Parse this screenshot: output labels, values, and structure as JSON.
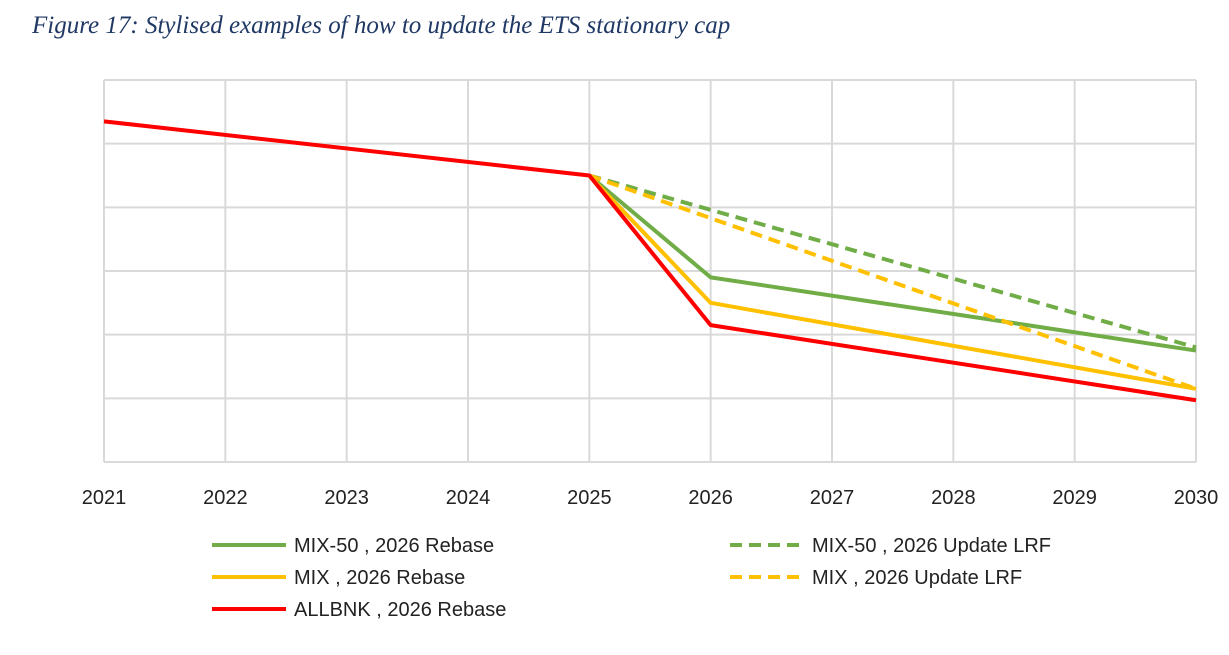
{
  "figure_title": "Figure 17: Stylised examples of how to update the ETS stationary cap",
  "chart_data": {
    "type": "line",
    "title": "",
    "xlabel": "",
    "ylabel": "",
    "x": [
      2021,
      2022,
      2023,
      2024,
      2025,
      2026,
      2027,
      2028,
      2029,
      2030
    ],
    "xlim": [
      2021,
      2030
    ],
    "ylim": [
      0,
      6
    ],
    "y_tick_labels_shown": false,
    "grid": true,
    "legend_position": "bottom",
    "series": [
      {
        "name": "MIX-50 , 2026 Rebase",
        "color": "#70AD47",
        "dash": false,
        "x": [
          2025,
          2026,
          2030
        ],
        "y": [
          4.5,
          2.9,
          1.75
        ]
      },
      {
        "name": "MIX-50 , 2026 Update LRF",
        "color": "#70AD47",
        "dash": true,
        "x": [
          2025,
          2030
        ],
        "y": [
          4.5,
          1.8
        ]
      },
      {
        "name": "MIX , 2026 Rebase",
        "color": "#FFC000",
        "dash": false,
        "x": [
          2025,
          2026,
          2030
        ],
        "y": [
          4.5,
          2.5,
          1.15
        ]
      },
      {
        "name": "MIX , 2026 Update LRF",
        "color": "#FFC000",
        "dash": true,
        "x": [
          2025,
          2030
        ],
        "y": [
          4.5,
          1.15
        ]
      },
      {
        "name": "ALLBNK , 2026 Rebase",
        "color": "#FF0000",
        "dash": false,
        "x": [
          2021,
          2025,
          2026,
          2030
        ],
        "y": [
          5.35,
          4.5,
          2.15,
          0.97
        ]
      }
    ]
  }
}
